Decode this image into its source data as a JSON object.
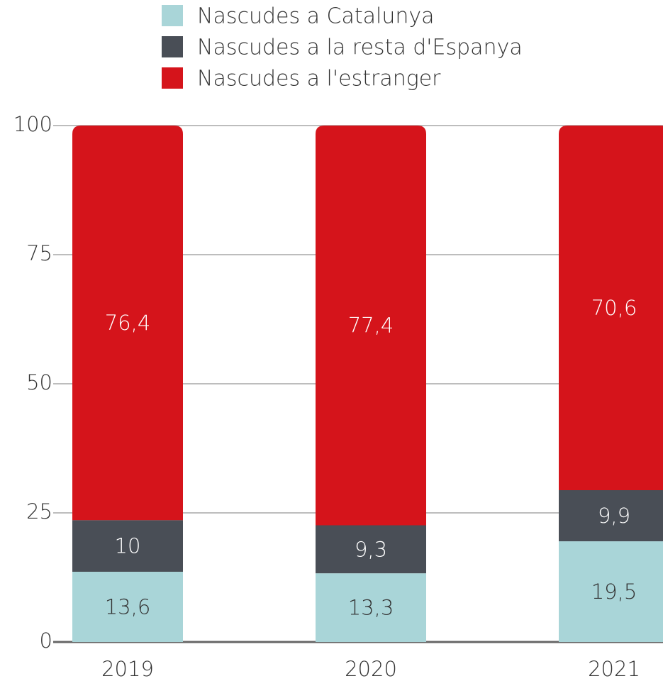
{
  "chart_data": {
    "type": "stacked_bar",
    "categories": [
      "2019",
      "2020",
      "2021"
    ],
    "series": [
      {
        "name": "Nascudes a Catalunya",
        "color": "#a9d5d8",
        "values": [
          13.6,
          13.3,
          19.5
        ],
        "value_labels": [
          "13,6",
          "13,3",
          "19,5"
        ]
      },
      {
        "name": "Nascudes a la resta d'Espanya",
        "color": "#494e56",
        "values": [
          10,
          9.3,
          9.9
        ],
        "value_labels": [
          "10",
          "9,3",
          "9,9"
        ]
      },
      {
        "name": "Nascudes a l'estranger",
        "color": "#d5141b",
        "values": [
          76.4,
          77.4,
          70.6
        ],
        "value_labels": [
          "76,4",
          "77,4",
          "70,6"
        ]
      }
    ],
    "ylim": [
      0,
      100
    ],
    "yticks": [
      0,
      25,
      50,
      75,
      100
    ],
    "grid": true
  }
}
